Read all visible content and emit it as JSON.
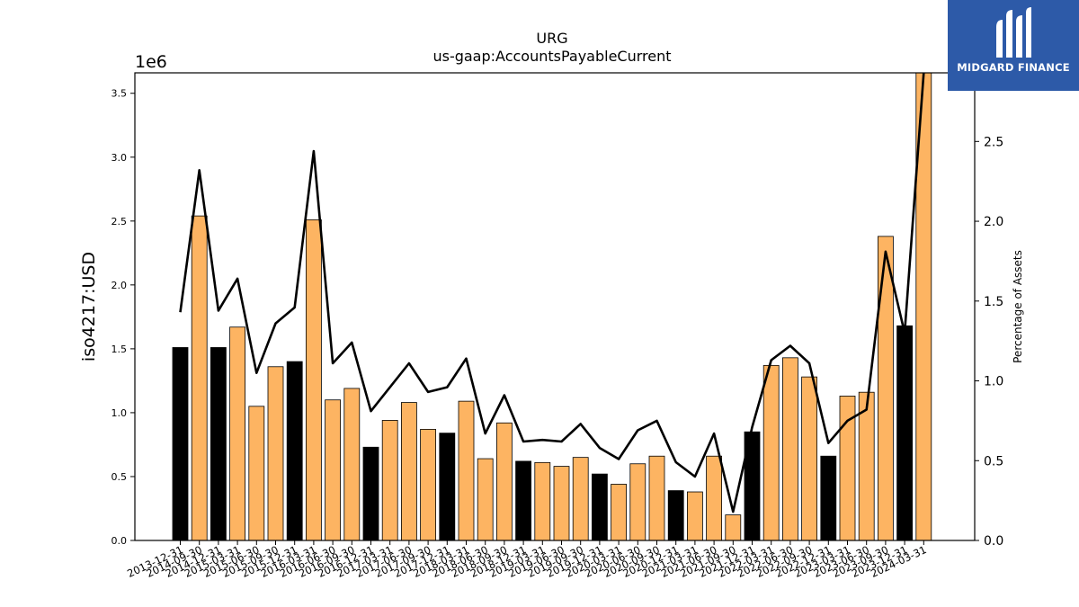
{
  "chart_data": {
    "type": "bar",
    "title": "URG",
    "subtitle": "us-gaap:AccountsPayableCurrent",
    "ylabel": "iso4217:USD",
    "y_offset_label": "1e6",
    "y2label": "Percentage of Assets",
    "ylim": [
      0,
      3.66
    ],
    "y2lim": [
      0,
      2.93
    ],
    "yticks": [
      "0.0",
      "0.5",
      "1.0",
      "1.5",
      "2.0",
      "2.5",
      "3.0",
      "3.5"
    ],
    "y2ticks": [
      "0.0",
      "0.5",
      "1.0",
      "1.5",
      "2.0",
      "2.5"
    ],
    "colors": {
      "annual": "#000000",
      "quarterly": "#fdb462",
      "line": "#000000"
    },
    "categories": [
      "2013-12-31",
      "2014-09-30",
      "2014-12-31",
      "2015-03-31",
      "2015-06-30",
      "2015-09-30",
      "2015-12-31",
      "2016-03-31",
      "2016-06-30",
      "2016-09-30",
      "2016-12-31",
      "2017-03-31",
      "2017-06-30",
      "2017-09-30",
      "2017-12-31",
      "2018-03-31",
      "2018-06-30",
      "2018-09-30",
      "2018-12-31",
      "2019-03-31",
      "2019-06-30",
      "2019-09-30",
      "2019-12-31",
      "2020-03-31",
      "2020-06-30",
      "2020-09-30",
      "2020-12-31",
      "2021-03-31",
      "2021-06-30",
      "2021-09-30",
      "2021-12-31",
      "2022-03-31",
      "2022-06-30",
      "2022-09-30",
      "2022-12-31",
      "2023-03-31",
      "2023-06-30",
      "2023-09-30",
      "2023-12-31",
      "2024-03-31"
    ],
    "series": [
      {
        "type": "bar",
        "values": [
          1.51,
          2.54,
          1.51,
          1.67,
          1.05,
          1.36,
          1.4,
          2.51,
          1.1,
          1.19,
          0.73,
          0.94,
          1.08,
          0.87,
          0.84,
          1.09,
          0.64,
          0.92,
          0.62,
          0.61,
          0.58,
          0.65,
          0.52,
          0.44,
          0.6,
          0.66,
          0.39,
          0.38,
          0.66,
          0.2,
          0.85,
          1.37,
          1.43,
          1.28,
          0.66,
          1.13,
          1.16,
          2.38,
          1.68,
          3.66
        ],
        "annual": [
          true,
          false,
          true,
          false,
          false,
          false,
          true,
          false,
          false,
          false,
          true,
          false,
          false,
          false,
          true,
          false,
          false,
          false,
          true,
          false,
          false,
          false,
          true,
          false,
          false,
          false,
          true,
          false,
          false,
          false,
          true,
          false,
          false,
          false,
          true,
          false,
          false,
          false,
          true,
          false
        ]
      },
      {
        "type": "line",
        "axis": "right",
        "values": [
          1.43,
          2.32,
          1.44,
          1.64,
          1.05,
          1.36,
          1.46,
          2.44,
          1.11,
          1.24,
          0.81,
          0.96,
          1.11,
          0.93,
          0.96,
          1.14,
          0.67,
          0.91,
          0.62,
          0.63,
          0.62,
          0.73,
          0.58,
          0.51,
          0.69,
          0.75,
          0.49,
          0.4,
          0.67,
          0.18,
          0.71,
          1.13,
          1.22,
          1.11,
          0.61,
          0.75,
          0.82,
          1.81,
          1.3,
          2.93
        ]
      }
    ]
  },
  "logo": {
    "text": "MIDGARD FINANCE"
  }
}
